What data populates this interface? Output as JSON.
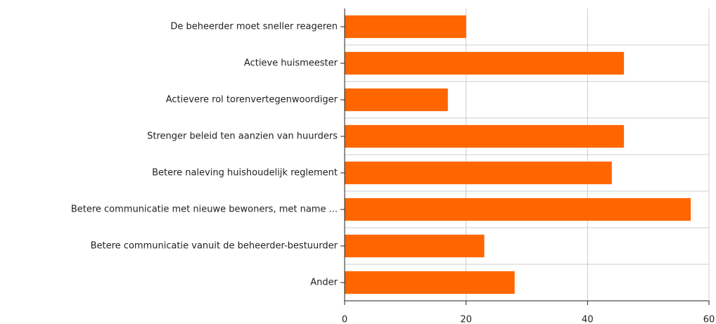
{
  "chart_data": {
    "type": "barh",
    "categories": [
      "De beheerder moet sneller reageren",
      "Actieve huismeester",
      "Actievere rol torenvertegenwoordiger",
      "Strenger beleid ten aanzien van huurders",
      "Betere naleving huishoudelijk reglement",
      "Betere communicatie met nieuwe bewoners, met name ...",
      "Betere communicatie vanuit de beheerder-bestuurder",
      "Ander"
    ],
    "values": [
      20,
      46,
      17,
      46,
      44,
      57,
      23,
      28
    ],
    "color": "#ff6600",
    "xlim": [
      0,
      60
    ],
    "xticks": [
      0,
      20,
      40,
      60
    ],
    "grid": true
  }
}
